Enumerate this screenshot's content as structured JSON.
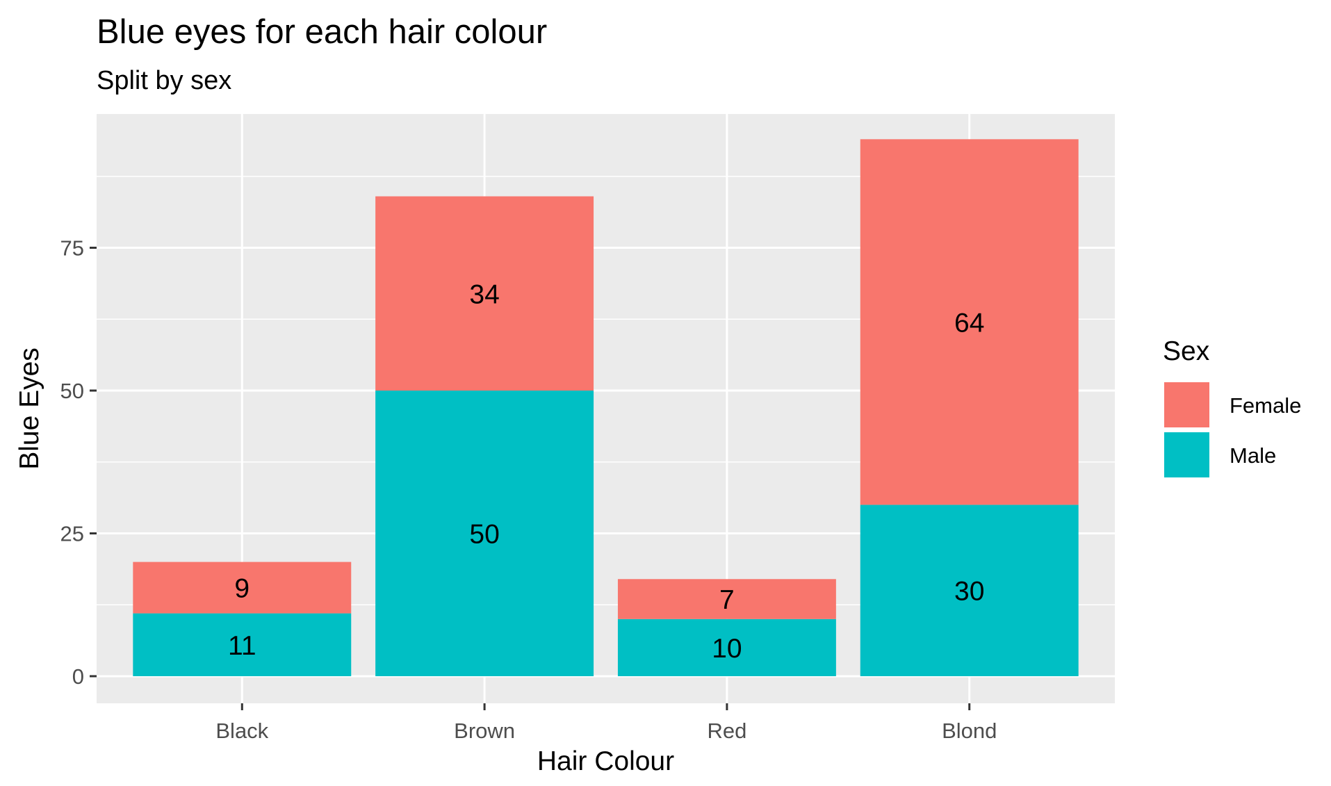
{
  "chart_data": {
    "type": "bar",
    "stacked": true,
    "title": "Blue eyes for each hair colour",
    "subtitle": "Split by sex",
    "xlabel": "Hair Colour",
    "ylabel": "Blue Eyes",
    "categories": [
      "Black",
      "Brown",
      "Red",
      "Blond"
    ],
    "series": [
      {
        "name": "Male",
        "values": [
          11,
          50,
          10,
          30
        ],
        "color": "#00BFC4"
      },
      {
        "name": "Female",
        "values": [
          9,
          34,
          7,
          64
        ],
        "color": "#F8766D"
      }
    ],
    "ylim": [
      0,
      98
    ],
    "yticks": [
      0,
      25,
      50,
      75
    ],
    "grid": true,
    "legend": {
      "title": "Sex",
      "position": "right",
      "entries": [
        {
          "label": "Female",
          "color": "#F8766D"
        },
        {
          "label": "Male",
          "color": "#00BFC4"
        }
      ]
    },
    "panel_color": "#EBEBEB",
    "grid_color": "#FFFFFF"
  }
}
